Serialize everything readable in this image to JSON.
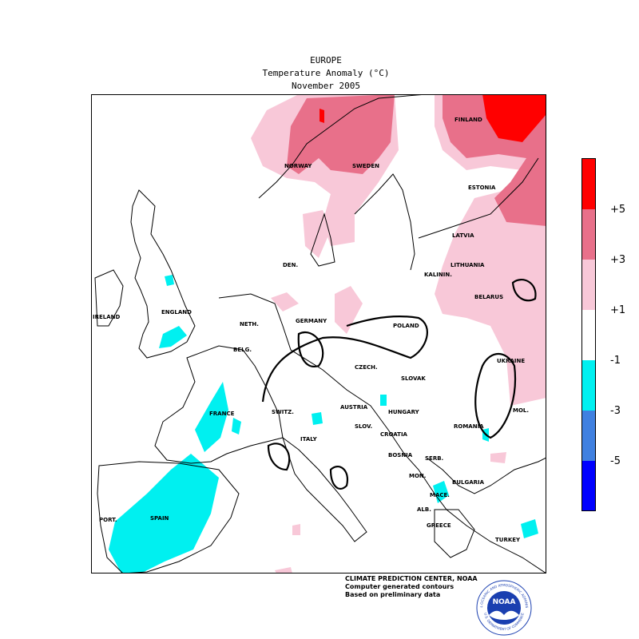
{
  "header": {
    "region": "EUROPE",
    "measure": "Temperature Anomaly (°C)",
    "period": "November 2005"
  },
  "legend": {
    "bands": [
      {
        "color": "#ff0000",
        "label": "+5",
        "from": 5,
        "to": null
      },
      {
        "color": "#e8708a",
        "label": "+3",
        "from": 3,
        "to": 5
      },
      {
        "color": "#f8c8d8",
        "label": "+1",
        "from": 1,
        "to": 3
      },
      {
        "color": "#ffffff",
        "label": "-1",
        "from": -1,
        "to": 1
      },
      {
        "color": "#00f0f0",
        "label": "-3",
        "from": -3,
        "to": -1
      },
      {
        "color": "#4080e0",
        "label": "-5",
        "from": -5,
        "to": -3
      },
      {
        "color": "#0000ff",
        "label": null,
        "from": null,
        "to": -5
      }
    ]
  },
  "countries": [
    {
      "name": "FINLAND"
    },
    {
      "name": "NORWAY"
    },
    {
      "name": "SWEDEN"
    },
    {
      "name": "ESTONIA"
    },
    {
      "name": "LATVIA"
    },
    {
      "name": "LITHUANIA"
    },
    {
      "name": "KALININ."
    },
    {
      "name": "BELARUS"
    },
    {
      "name": "DEN."
    },
    {
      "name": "ENGLAND"
    },
    {
      "name": "IRELAND"
    },
    {
      "name": "NETH."
    },
    {
      "name": "GERMANY"
    },
    {
      "name": "POLAND"
    },
    {
      "name": "BELG."
    },
    {
      "name": "CZECH."
    },
    {
      "name": "SLOVAK"
    },
    {
      "name": "UKRAINE"
    },
    {
      "name": "FRANCE"
    },
    {
      "name": "SWITZ."
    },
    {
      "name": "AUSTRIA"
    },
    {
      "name": "HUNGARY"
    },
    {
      "name": "MOL."
    },
    {
      "name": "ROMANIA"
    },
    {
      "name": "SLOV."
    },
    {
      "name": "CROATIA"
    },
    {
      "name": "ITALY"
    },
    {
      "name": "BOSNIA"
    },
    {
      "name": "SERB."
    },
    {
      "name": "MON."
    },
    {
      "name": "BULGARIA"
    },
    {
      "name": "MACE."
    },
    {
      "name": "ALB."
    },
    {
      "name": "GREECE"
    },
    {
      "name": "TURKEY"
    },
    {
      "name": "PORT."
    },
    {
      "name": "SPAIN"
    }
  ],
  "credits": {
    "line1": "CLIMATE PREDICTION CENTER, NOAA",
    "line2": "Computer generated contours",
    "line3": "Based on preliminary data"
  },
  "logo": {
    "text": "NOAA",
    "ring_top": "NATIONAL OCEANIC AND ATMOSPHERIC ADMINISTRATION",
    "ring_bottom": "U.S. DEPARTMENT OF COMMERCE"
  }
}
